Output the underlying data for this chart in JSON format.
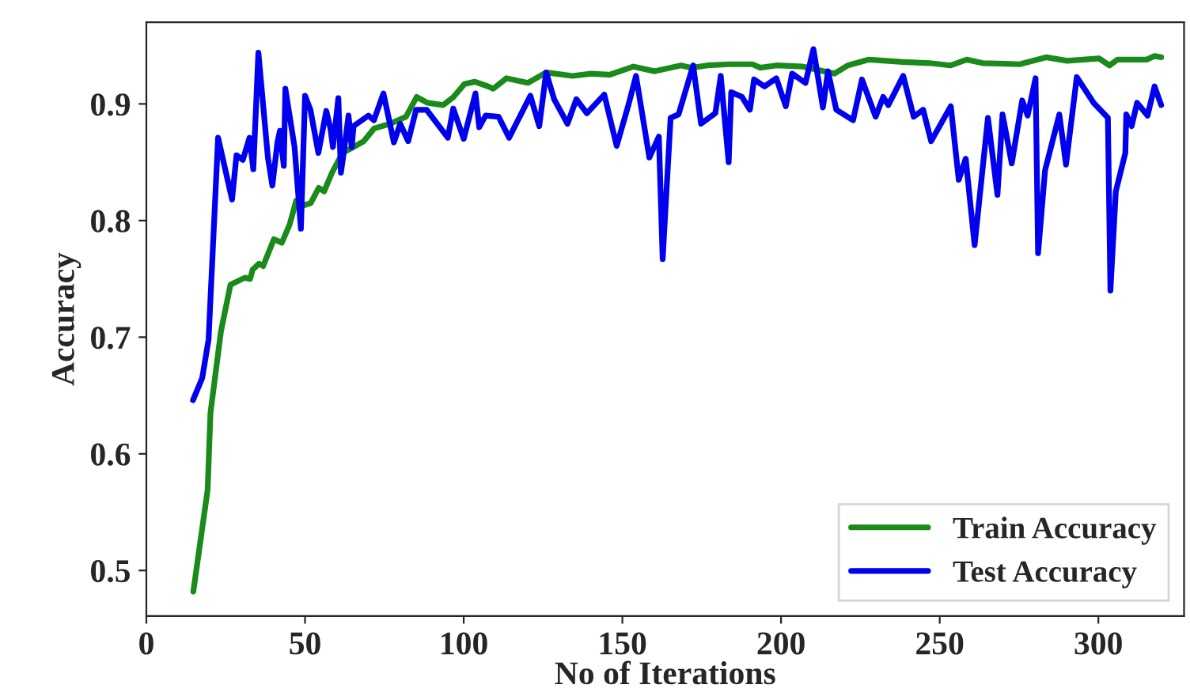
{
  "chart_data": {
    "type": "line",
    "xlabel": "No of Iterations",
    "ylabel": "Accuracy",
    "xlim": [
      0,
      327
    ],
    "ylim": [
      0.461,
      0.97
    ],
    "xticks": [
      0,
      50,
      100,
      150,
      200,
      250,
      300
    ],
    "yticks": [
      0.5,
      0.6,
      0.7,
      0.8,
      0.9
    ],
    "grid": false,
    "legend": "bottom right",
    "marker": "none",
    "line_style": "solid",
    "series": [
      {
        "name": "Train Accuracy",
        "color": "#1a8a1a",
        "x": [
          14.8,
          19.3,
          20.2,
          23.5,
          26.5,
          31,
          32.7,
          33.5,
          35.5,
          36.8,
          40.2,
          42.7,
          45.2,
          47.2,
          48.5,
          51.8,
          54.3,
          56,
          58.5,
          61.8,
          65.2,
          68.5,
          71.8,
          76.8,
          81.8,
          85.2,
          88.5,
          93.5,
          96.8,
          100.2,
          103.5,
          107.7,
          109.3,
          113.5,
          120.2,
          126,
          134.3,
          140.2,
          146,
          153.5,
          160.2,
          168.5,
          171.8,
          176.8,
          183.5,
          191,
          193.5,
          198.5,
          206.8,
          213.5,
          216.8,
          221,
          227.7,
          238.5,
          246.8,
          253.5,
          258.5,
          263.5,
          275.2,
          283.5,
          290.2,
          300.2,
          303.5,
          306,
          315.2,
          317.7,
          319.8
        ],
        "values": [
          0.482,
          0.569,
          0.635,
          0.705,
          0.745,
          0.751,
          0.75,
          0.758,
          0.763,
          0.761,
          0.784,
          0.781,
          0.797,
          0.817,
          0.812,
          0.815,
          0.828,
          0.825,
          0.841,
          0.858,
          0.863,
          0.868,
          0.879,
          0.883,
          0.889,
          0.906,
          0.901,
          0.899,
          0.906,
          0.917,
          0.919,
          0.915,
          0.913,
          0.922,
          0.918,
          0.927,
          0.924,
          0.926,
          0.925,
          0.932,
          0.928,
          0.933,
          0.931,
          0.933,
          0.934,
          0.934,
          0.931,
          0.933,
          0.932,
          0.928,
          0.926,
          0.933,
          0.938,
          0.936,
          0.935,
          0.933,
          0.938,
          0.935,
          0.934,
          0.94,
          0.937,
          0.939,
          0.933,
          0.938,
          0.938,
          0.941,
          0.94
        ]
      },
      {
        "name": "Test Accuracy",
        "color": "#0000ee",
        "x": [
          14.7,
          17.6,
          19.6,
          22.6,
          27,
          28.4,
          30.4,
          32.5,
          33.7,
          35.3,
          38.3,
          39.7,
          41.3,
          42.1,
          43.3,
          43.8,
          46.7,
          48.7,
          50,
          51.7,
          54.2,
          56.7,
          58,
          58.8,
          60.5,
          61.3,
          62.2,
          63.7,
          64.7,
          65.3,
          70,
          71.7,
          74.7,
          78,
          80,
          82.5,
          85,
          88.3,
          95,
          96.7,
          100,
          103.7,
          104.9,
          106.9,
          111,
          114.3,
          121,
          123.8,
          126,
          128.5,
          132.7,
          135.5,
          138.8,
          144.3,
          148.2,
          151.8,
          154.3,
          158.5,
          161.5,
          162.7,
          165.2,
          167.7,
          172.3,
          174.8,
          179.3,
          181,
          183.5,
          184.3,
          187.7,
          190.2,
          191.5,
          194.8,
          198.5,
          201.5,
          203.5,
          207.7,
          210.2,
          213.2,
          214.8,
          217.4,
          222.7,
          225.5,
          229.8,
          232.2,
          233.8,
          238.5,
          241.8,
          244.8,
          247.3,
          253.5,
          256,
          258.2,
          261,
          265.2,
          268.2,
          269.8,
          272.7,
          276,
          277.7,
          280.2,
          281,
          283.2,
          287.7,
          289.8,
          293.2,
          298.5,
          303,
          303.8,
          305.5,
          308.5,
          308.8,
          310.5,
          312.2,
          315.5,
          317.7,
          319.8
        ],
        "values": [
          0.646,
          0.665,
          0.698,
          0.871,
          0.818,
          0.856,
          0.852,
          0.871,
          0.844,
          0.944,
          0.854,
          0.83,
          0.867,
          0.877,
          0.847,
          0.913,
          0.863,
          0.793,
          0.907,
          0.895,
          0.858,
          0.894,
          0.879,
          0.863,
          0.905,
          0.841,
          0.858,
          0.89,
          0.863,
          0.881,
          0.89,
          0.886,
          0.909,
          0.867,
          0.883,
          0.868,
          0.895,
          0.895,
          0.871,
          0.896,
          0.87,
          0.909,
          0.88,
          0.89,
          0.889,
          0.871,
          0.907,
          0.881,
          0.927,
          0.904,
          0.883,
          0.904,
          0.892,
          0.908,
          0.864,
          0.898,
          0.924,
          0.854,
          0.872,
          0.767,
          0.888,
          0.891,
          0.933,
          0.883,
          0.892,
          0.924,
          0.85,
          0.91,
          0.906,
          0.895,
          0.921,
          0.915,
          0.922,
          0.898,
          0.926,
          0.918,
          0.947,
          0.897,
          0.928,
          0.895,
          0.886,
          0.921,
          0.889,
          0.906,
          0.899,
          0.924,
          0.889,
          0.895,
          0.868,
          0.898,
          0.835,
          0.853,
          0.779,
          0.888,
          0.822,
          0.891,
          0.849,
          0.903,
          0.89,
          0.922,
          0.772,
          0.843,
          0.891,
          0.848,
          0.923,
          0.901,
          0.888,
          0.74,
          0.825,
          0.858,
          0.891,
          0.881,
          0.901,
          0.89,
          0.915,
          0.899
        ]
      }
    ]
  }
}
